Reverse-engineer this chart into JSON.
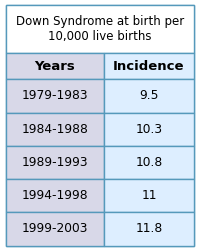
{
  "title": "Down Syndrome at birth per\n10,000 live births",
  "col_headers": [
    "Years",
    "Incidence"
  ],
  "rows": [
    [
      "1979-1983",
      "9.5"
    ],
    [
      "1984-1988",
      "10.3"
    ],
    [
      "1989-1993",
      "10.8"
    ],
    [
      "1994-1998",
      "11"
    ],
    [
      "1999-2003",
      "11.8"
    ]
  ],
  "header_bg": "#d8d8e8",
  "col1_bg": "#d8d8e8",
  "col2_bg": "#ddeeff",
  "border_color": "#5599bb",
  "title_fontsize": 8.5,
  "header_fontsize": 9.5,
  "cell_fontsize": 8.8,
  "outer_bg": "#ffffff"
}
